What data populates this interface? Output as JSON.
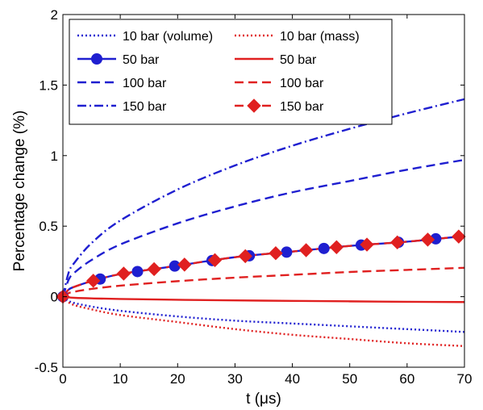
{
  "chart_data": {
    "type": "line",
    "xlabel": "t (μs)",
    "ylabel": "Percentage change (%)",
    "xlim": [
      0,
      70
    ],
    "ylim": [
      -0.5,
      2
    ],
    "xticks": [
      0,
      10,
      20,
      30,
      40,
      50,
      60,
      70
    ],
    "xtick_labels": [
      "0",
      "10",
      "20",
      "30",
      "40",
      "50",
      "60",
      "70"
    ],
    "yticks": [
      -0.5,
      0,
      0.5,
      1,
      1.5,
      2
    ],
    "ytick_labels": [
      "-0.5",
      "0",
      "0.5",
      "1",
      "1.5",
      "2"
    ],
    "grid": false,
    "legend_position": "top",
    "legend_columns": 2,
    "series": [
      {
        "name": "10 bar (volume)",
        "color": "#1f1fd0",
        "style": "dotted",
        "marker": "none",
        "x": [
          0,
          1,
          2,
          5,
          10,
          20,
          30,
          40,
          50,
          60,
          70
        ],
        "y": [
          0,
          -0.03,
          -0.045,
          -0.07,
          -0.1,
          -0.14,
          -0.17,
          -0.19,
          -0.21,
          -0.23,
          -0.25
        ]
      },
      {
        "name": "50 bar",
        "color": "#1f1fd0",
        "style": "solid",
        "marker": "circle",
        "x": [
          0,
          1,
          2,
          5,
          10,
          20,
          30,
          40,
          50,
          60,
          70
        ],
        "y": [
          0,
          0.05,
          0.07,
          0.11,
          0.16,
          0.22,
          0.28,
          0.32,
          0.36,
          0.39,
          0.43
        ],
        "marker_x": [
          0,
          6.5,
          13,
          19.5,
          26,
          32.5,
          39,
          45.5,
          52,
          58.5,
          65
        ]
      },
      {
        "name": "100 bar",
        "color": "#1f1fd0",
        "style": "dashed",
        "marker": "none",
        "x": [
          0,
          1,
          2,
          5,
          10,
          20,
          30,
          40,
          50,
          60,
          70
        ],
        "y": [
          0,
          0.12,
          0.17,
          0.26,
          0.37,
          0.52,
          0.64,
          0.74,
          0.82,
          0.9,
          0.97
        ]
      },
      {
        "name": "150 bar",
        "color": "#1f1fd0",
        "style": "dashdot",
        "marker": "none",
        "x": [
          0,
          1,
          2,
          5,
          10,
          20,
          30,
          40,
          50,
          60,
          70
        ],
        "y": [
          0,
          0.17,
          0.24,
          0.38,
          0.54,
          0.76,
          0.93,
          1.07,
          1.19,
          1.3,
          1.4
        ]
      },
      {
        "name": "10 bar (mass)",
        "color": "#e02020",
        "style": "dotted",
        "marker": "none",
        "x": [
          0,
          1,
          2,
          5,
          10,
          20,
          30,
          40,
          50,
          60,
          70
        ],
        "y": [
          0,
          -0.04,
          -0.06,
          -0.09,
          -0.13,
          -0.18,
          -0.23,
          -0.27,
          -0.3,
          -0.33,
          -0.35
        ]
      },
      {
        "name": "50 bar",
        "color": "#e02020",
        "style": "solid",
        "marker": "none",
        "x": [
          0,
          1,
          2,
          5,
          10,
          20,
          30,
          40,
          50,
          60,
          70
        ],
        "y": [
          0,
          -0.005,
          -0.008,
          -0.012,
          -0.016,
          -0.022,
          -0.026,
          -0.03,
          -0.033,
          -0.036,
          -0.038
        ]
      },
      {
        "name": "100 bar",
        "color": "#e02020",
        "style": "dashed",
        "marker": "none",
        "x": [
          0,
          1,
          2,
          5,
          10,
          20,
          30,
          40,
          50,
          60,
          70
        ],
        "y": [
          0,
          0.025,
          0.035,
          0.055,
          0.078,
          0.11,
          0.135,
          0.155,
          0.175,
          0.19,
          0.205
        ]
      },
      {
        "name": "150 bar",
        "color": "#e02020",
        "style": "dashed",
        "marker": "diamond",
        "x": [
          0,
          1,
          2,
          5,
          10,
          20,
          30,
          40,
          50,
          60,
          70
        ],
        "y": [
          0,
          0.05,
          0.07,
          0.11,
          0.16,
          0.22,
          0.28,
          0.32,
          0.36,
          0.39,
          0.43
        ],
        "marker_x": [
          0,
          5.3,
          10.6,
          15.9,
          21.2,
          26.5,
          31.8,
          37.1,
          42.4,
          47.7,
          53,
          58.3,
          63.6,
          69
        ]
      }
    ],
    "legend": [
      {
        "label": "10 bar (volume)",
        "series": 0
      },
      {
        "label": "10 bar (mass)",
        "series": 4
      },
      {
        "label": "50 bar",
        "series": 1
      },
      {
        "label": "50 bar",
        "series": 5
      },
      {
        "label": "100 bar",
        "series": 2
      },
      {
        "label": "100 bar",
        "series": 6
      },
      {
        "label": "150 bar",
        "series": 3
      },
      {
        "label": "150 bar",
        "series": 7
      }
    ]
  }
}
